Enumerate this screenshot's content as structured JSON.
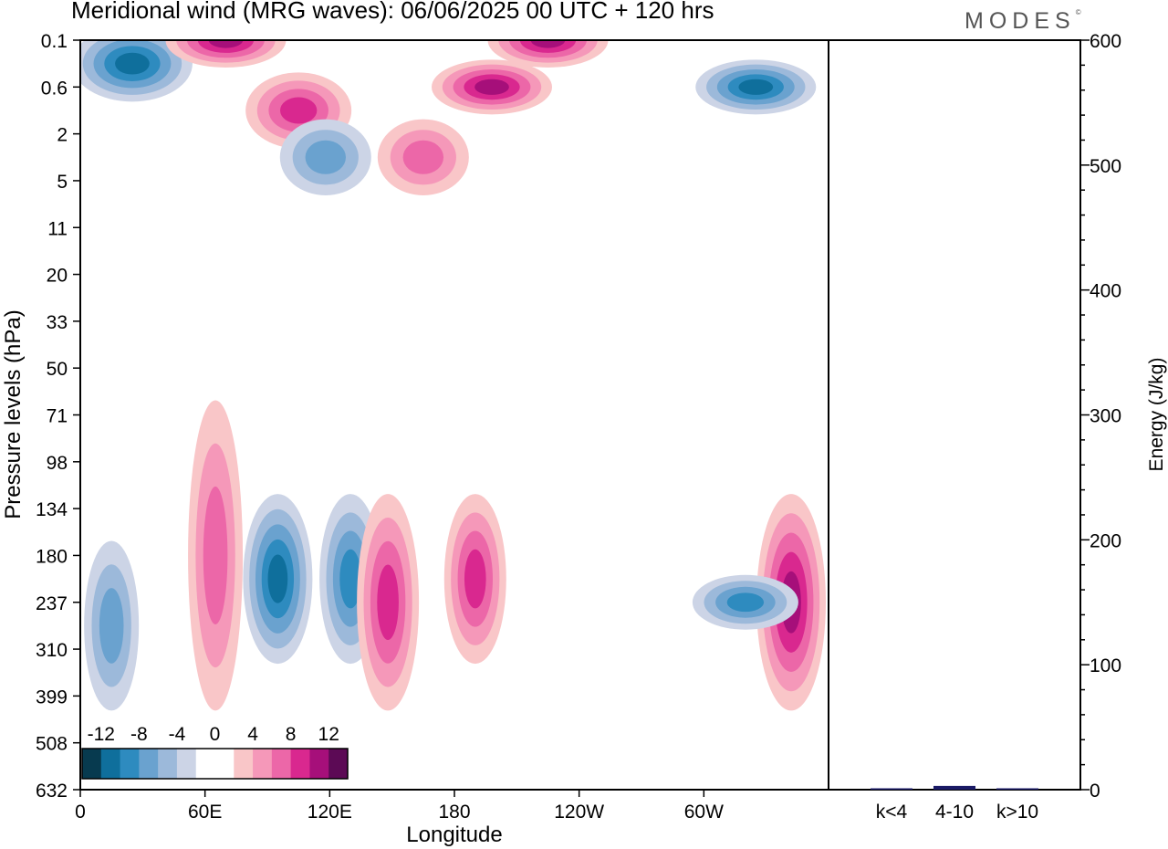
{
  "title": "Meridional wind (MRG waves):  06/06/2025  00 UTC  + 120 hrs",
  "brand": {
    "name": "MODES",
    "mark": "©"
  },
  "chart_data": [
    {
      "type": "heatmap",
      "variable": "Meridional wind (MRG waves)",
      "xlabel": "Longitude",
      "ylabel": "Pressure levels (hPa)",
      "x_ticks": [
        "0",
        "60E",
        "120E",
        "180",
        "120W",
        "60W"
      ],
      "y_ticks": [
        "0.1",
        "0.6",
        "2",
        "5",
        "11",
        "20",
        "33",
        "50",
        "71",
        "98",
        "134",
        "180",
        "237",
        "310",
        "399",
        "508",
        "632"
      ],
      "colorbar": {
        "labels": [
          "-12",
          "-8",
          "-4",
          "0",
          "4",
          "8",
          "12"
        ],
        "colors": [
          "#073a4f",
          "#0f6f9c",
          "#2e8bbf",
          "#6aa2cf",
          "#9cb9da",
          "#ccd4e6",
          "#ffffff",
          "#ffffff",
          "#f9c6c8",
          "#f598b9",
          "#ec67a8",
          "#d9288f",
          "#a60f7a",
          "#5c0a55"
        ]
      },
      "features": [
        {
          "lon": 25,
          "level": "0.1-0.6",
          "sign": "negative",
          "strength": 4
        },
        {
          "lon": 70,
          "level": "0.1",
          "sign": "positive",
          "strength": 4
        },
        {
          "lon": 105,
          "level": "0.6-2",
          "sign": "positive",
          "strength": 3
        },
        {
          "lon": 118,
          "level": "2-5",
          "sign": "negative",
          "strength": 2
        },
        {
          "lon": 165,
          "level": "2-5",
          "sign": "positive",
          "strength": 2
        },
        {
          "lon": 198,
          "level": "0.6",
          "sign": "positive",
          "strength": 4
        },
        {
          "lon": 225,
          "level": "0.1",
          "sign": "positive",
          "strength": 4
        },
        {
          "lon": 325,
          "level": "0.6",
          "sign": "negative",
          "strength": 4
        },
        {
          "lon": 95,
          "level": "134-310",
          "sign": "negative",
          "strength": 4
        },
        {
          "lon": 130,
          "level": "134-310",
          "sign": "negative",
          "strength": 3
        },
        {
          "lon": 65,
          "level": "71-399",
          "sign": "positive",
          "strength": 2
        },
        {
          "lon": 148,
          "level": "134-399",
          "sign": "positive",
          "strength": 3
        },
        {
          "lon": 190,
          "level": "134-310",
          "sign": "positive",
          "strength": 3
        },
        {
          "lon": 342,
          "level": "134-399",
          "sign": "positive",
          "strength": 4
        },
        {
          "lon": 320,
          "level": "237",
          "sign": "negative",
          "strength": 3
        },
        {
          "lon": 15,
          "level": "180-399",
          "sign": "negative",
          "strength": 2
        }
      ]
    },
    {
      "type": "bar",
      "ylabel": "Energy (J/kg)",
      "ylim": [
        0,
        600
      ],
      "y_ticks": [
        "0",
        "100",
        "200",
        "300",
        "400",
        "500",
        "600"
      ],
      "categories": [
        "k<4",
        "4-10",
        "k>10"
      ],
      "values": [
        1,
        3,
        0.5
      ]
    }
  ]
}
